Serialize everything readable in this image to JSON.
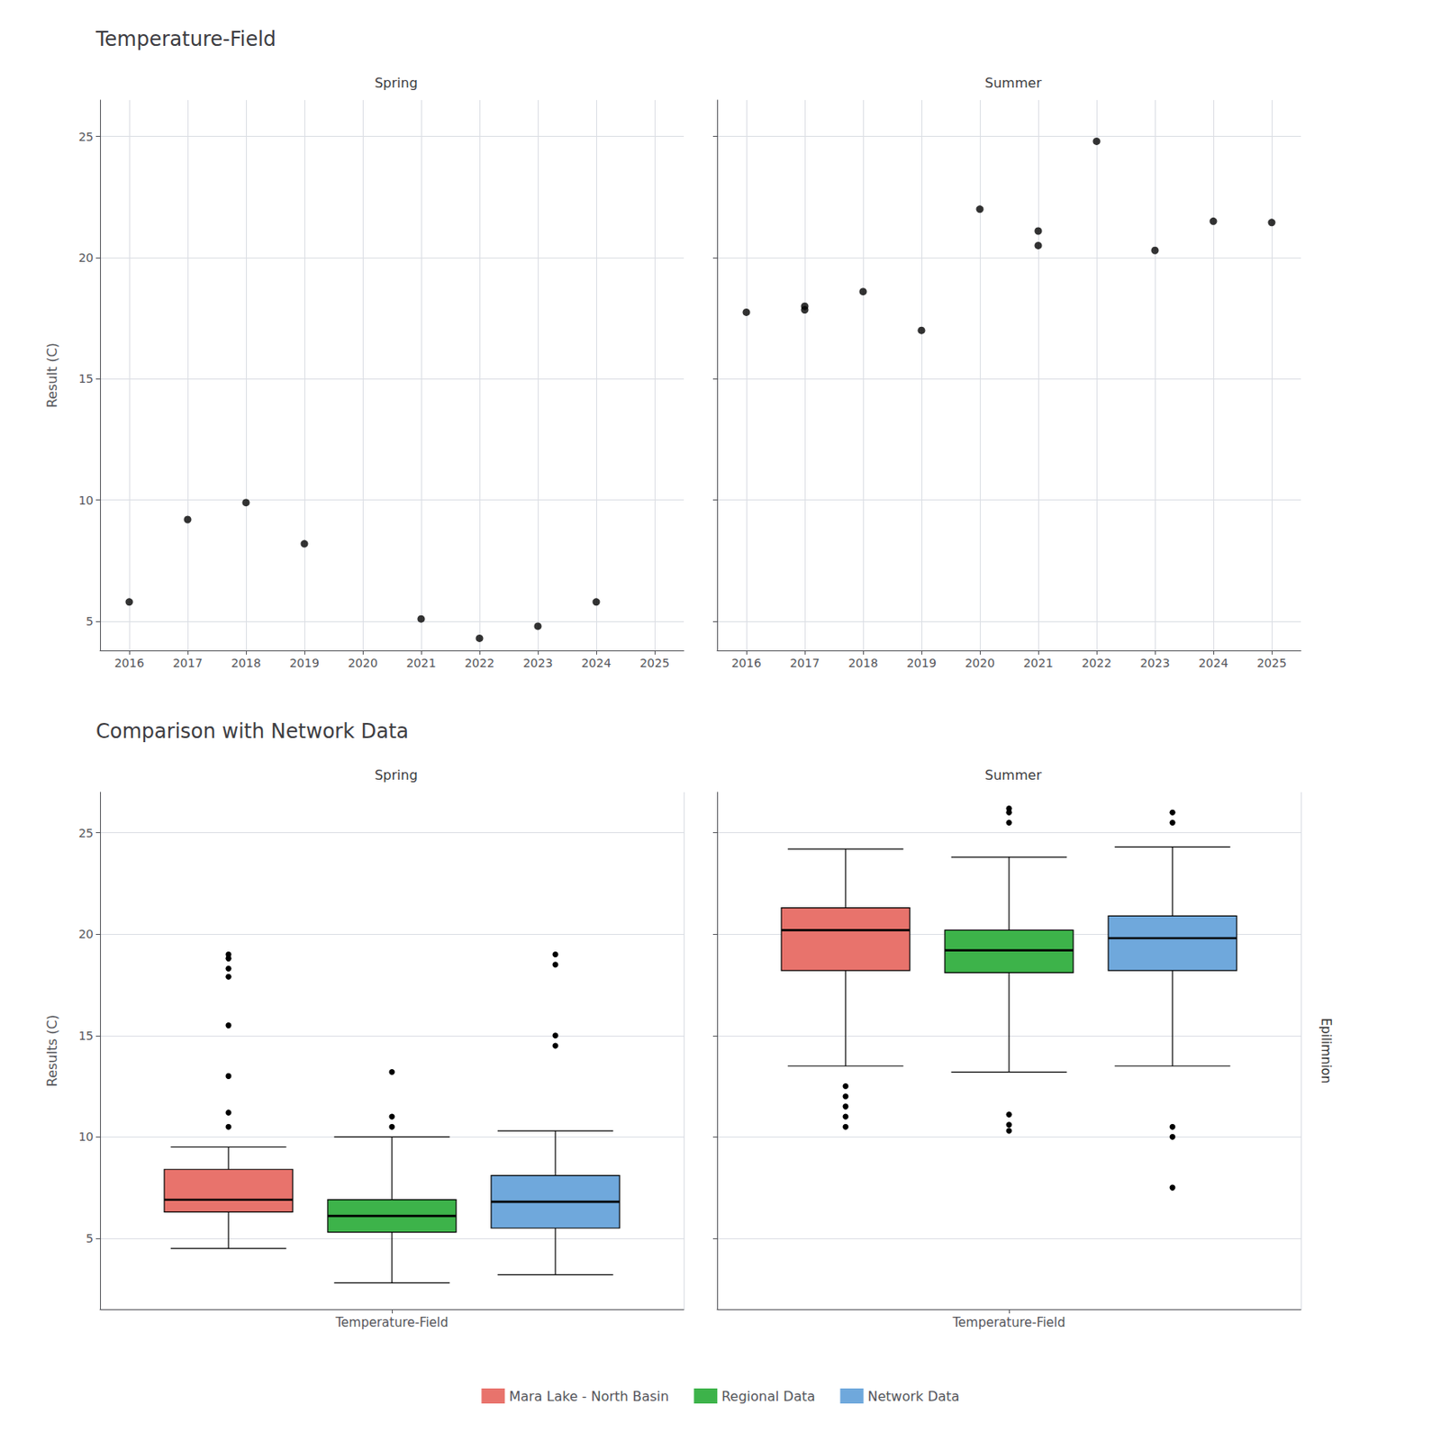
{
  "chart_data": [
    {
      "type": "scatter",
      "title": "Temperature-Field",
      "subtitle": "Spring",
      "ylabel": "Result (C)",
      "x": [
        2016,
        2017,
        2018,
        2019,
        2021,
        2022,
        2023,
        2024
      ],
      "values": [
        5.8,
        9.2,
        9.9,
        8.2,
        5.1,
        4.3,
        4.8,
        5.8
      ],
      "color": "#000000",
      "xlim": [
        2015.5,
        2025.5
      ],
      "ylim": [
        3.8,
        26.5
      ],
      "xticks": [
        2016,
        2017,
        2018,
        2019,
        2020,
        2021,
        2022,
        2023,
        2024,
        2025
      ],
      "yticks": [
        5,
        10,
        15,
        20,
        25
      ],
      "grid": true
    },
    {
      "type": "scatter",
      "subtitle": "Summer",
      "x": [
        2016,
        2017,
        2017,
        2018,
        2019,
        2020,
        2021,
        2021,
        2022,
        2023,
        2024,
        2025
      ],
      "values": [
        17.75,
        17.85,
        18.0,
        18.6,
        17.0,
        22.0,
        20.5,
        21.1,
        24.8,
        20.3,
        21.5,
        21.45
      ],
      "color": "#000000",
      "xlim": [
        2015.5,
        2025.5
      ],
      "ylim": [
        3.8,
        26.5
      ],
      "xticks": [
        2016,
        2017,
        2018,
        2019,
        2020,
        2021,
        2022,
        2023,
        2024,
        2025
      ],
      "yticks": [
        5,
        10,
        15,
        20,
        25
      ],
      "grid": true,
      "tick_labels": "x"
    },
    {
      "type": "box",
      "title": "Comparison with Network Data",
      "subtitle": "Spring",
      "ylabel": "Results (C)",
      "categories": [
        "Temperature-Field"
      ],
      "series": [
        {
          "name": "Mara Lake - North Basin",
          "color": "#E8736C",
          "whislo": 4.5,
          "q1": 6.3,
          "median": 6.9,
          "q3": 8.4,
          "whishi": 9.5,
          "fliers": [
            10.5,
            11.2,
            13.0,
            15.5,
            17.9,
            18.3,
            18.8,
            19.0
          ]
        },
        {
          "name": "Regional Data",
          "color": "#3DB34A",
          "whislo": 2.8,
          "q1": 5.3,
          "median": 6.1,
          "q3": 6.9,
          "whishi": 10.0,
          "fliers": [
            10.5,
            11.0,
            13.2
          ]
        },
        {
          "name": "Network Data",
          "color": "#6FA8DC",
          "whislo": 3.2,
          "q1": 5.5,
          "median": 6.8,
          "q3": 8.1,
          "whishi": 10.3,
          "fliers": [
            14.5,
            15.0,
            18.5,
            19.0
          ]
        }
      ],
      "ylim": [
        1.5,
        27.0
      ],
      "yticks": [
        5,
        10,
        15,
        20,
        25
      ],
      "grid": true,
      "legend": "bottom"
    },
    {
      "type": "box",
      "subtitle": "Summer",
      "annotation": "Epilimnion",
      "categories": [
        "Temperature-Field"
      ],
      "series": [
        {
          "name": "Mara Lake - North Basin",
          "color": "#E8736C",
          "whislo": 13.5,
          "q1": 18.2,
          "median": 20.2,
          "q3": 21.3,
          "whishi": 24.2,
          "fliers": [
            10.5,
            11.0,
            11.5,
            12.0,
            12.5
          ]
        },
        {
          "name": "Regional Data",
          "color": "#3DB34A",
          "whislo": 13.2,
          "q1": 18.1,
          "median": 19.2,
          "q3": 20.2,
          "whishi": 23.8,
          "fliers": [
            25.5,
            26.0,
            26.2,
            10.3,
            10.6,
            11.1
          ]
        },
        {
          "name": "Network Data",
          "color": "#6FA8DC",
          "whislo": 13.5,
          "q1": 18.2,
          "median": 19.8,
          "q3": 20.9,
          "whishi": 24.3,
          "fliers": [
            25.5,
            26.0,
            10.0,
            10.5,
            7.5
          ]
        }
      ],
      "ylim": [
        1.5,
        27.0
      ],
      "yticks": [
        5,
        10,
        15,
        20,
        25
      ],
      "grid": true,
      "tick_labels": "x",
      "legend": "bottom"
    }
  ]
}
